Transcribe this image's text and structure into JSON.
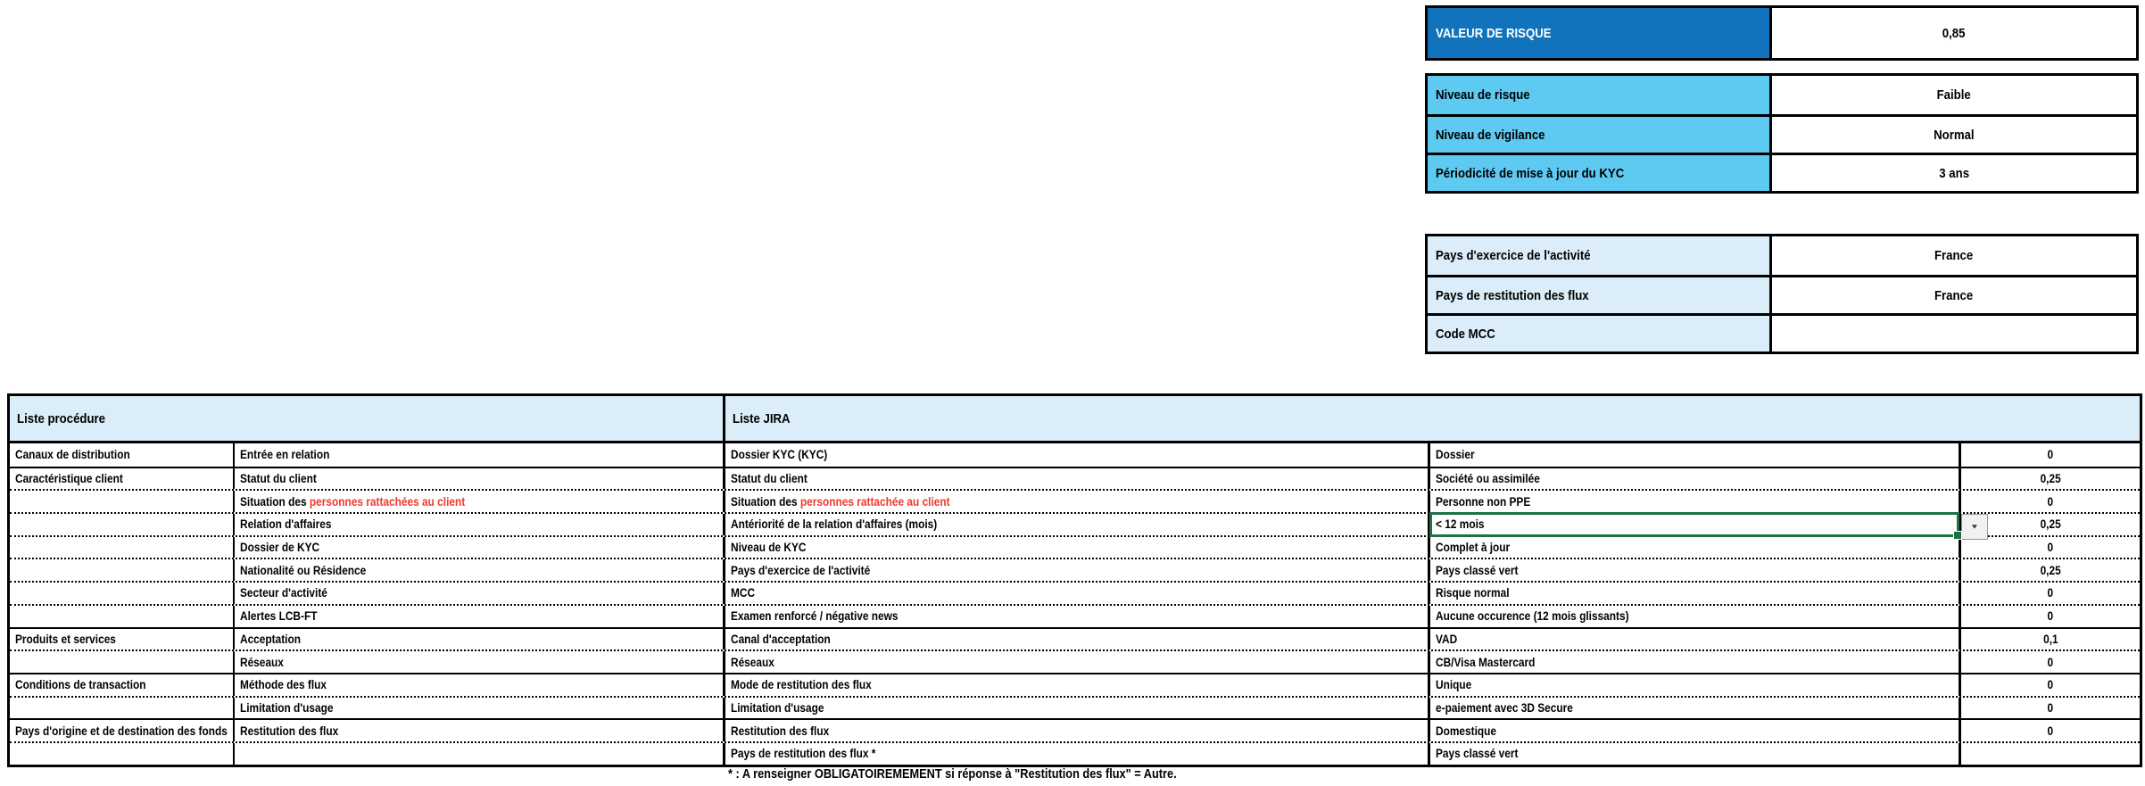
{
  "risk_value": {
    "label": "VALEUR DE RISQUE",
    "value": "0,85"
  },
  "risk_levels": [
    {
      "label": "Niveau de risque",
      "value": "Faible"
    },
    {
      "label": "Niveau de vigilance",
      "value": "Normal"
    },
    {
      "label": "Périodicité de mise à jour du KYC",
      "value": "3 ans"
    }
  ],
  "country_block": [
    {
      "label": "Pays d'exercice de l'activité",
      "value": "France"
    },
    {
      "label": "Pays de restitution des flux",
      "value": "France"
    },
    {
      "label": "Code MCC",
      "value": ""
    }
  ],
  "criteria_table": {
    "header_procedure": "Liste procédure",
    "header_jira": "Liste JIRA",
    "rows": [
      {
        "category": "Canaux de distribution",
        "procedure": "Entrée en relation",
        "jira": "Dossier KYC (KYC)",
        "answer": "Dossier",
        "score": "0"
      },
      {
        "category": "Caractéristique client",
        "procedure": "Statut du client",
        "jira": "Statut du client",
        "answer": "Société ou assimilée",
        "score": "0,25"
      },
      {
        "category": "",
        "procedure_prefix": "Situation des ",
        "procedure_red": "personnes rattachées au client",
        "jira_prefix": "Situation des ",
        "jira_red": "personnes rattachée au client",
        "answer": "Personne non PPE",
        "score": "0"
      },
      {
        "category": "",
        "procedure": "Relation d'affaires",
        "jira": "Antériorité de la relation d'affaires (mois)",
        "answer": "< 12 mois",
        "score": "0,25",
        "selected": true
      },
      {
        "category": "",
        "procedure": "Dossier de KYC",
        "jira": "Niveau de KYC",
        "answer": "Complet à jour",
        "score": "0"
      },
      {
        "category": "",
        "procedure": "Nationalité ou Résidence",
        "jira": "Pays d'exercice de l'activité",
        "answer": "Pays classé vert",
        "score": "0,25"
      },
      {
        "category": "",
        "procedure": "Secteur d'activité",
        "jira": "MCC",
        "answer": "Risque normal",
        "score": "0"
      },
      {
        "category": "",
        "procedure": "Alertes LCB-FT",
        "jira": "Examen renforcé / négative news",
        "answer": "Aucune occurence (12 mois glissants)",
        "score": "0"
      },
      {
        "category": "Produits et services",
        "procedure": "Acceptation",
        "jira": "Canal d'acceptation",
        "answer": "VAD",
        "score": "0,1"
      },
      {
        "category": "",
        "procedure": "Réseaux",
        "jira": "Réseaux",
        "answer": "CB/Visa Mastercard",
        "score": "0"
      },
      {
        "category": "Conditions de transaction",
        "procedure": "Méthode des flux",
        "jira": "Mode de restitution des flux",
        "answer": "Unique",
        "score": "0"
      },
      {
        "category": "",
        "procedure": "Limitation d'usage",
        "jira": "Limitation d'usage",
        "answer": "e-paiement avec 3D Secure",
        "score": "0"
      },
      {
        "category": "Pays d'origine et de destination des fonds",
        "procedure": "Restitution des flux",
        "jira": "Restitution des flux",
        "answer": "Domestique",
        "score": "0"
      },
      {
        "category": "",
        "procedure": "",
        "jira": "Pays de restitution des flux *",
        "answer": "Pays classé vert",
        "score": ""
      }
    ]
  },
  "footnote": "* : A renseigner OBLIGATOIREMEMENT si réponse à \"Restitution des flux\" = Autre.",
  "dropdown_icon": "▼",
  "colors": {
    "dark_blue": "#1173BC",
    "sky_blue": "#5EC9F1",
    "pale_blue": "#DAEDF8",
    "red_text": "#EE3A2E",
    "selection_green": "#1E7145"
  }
}
